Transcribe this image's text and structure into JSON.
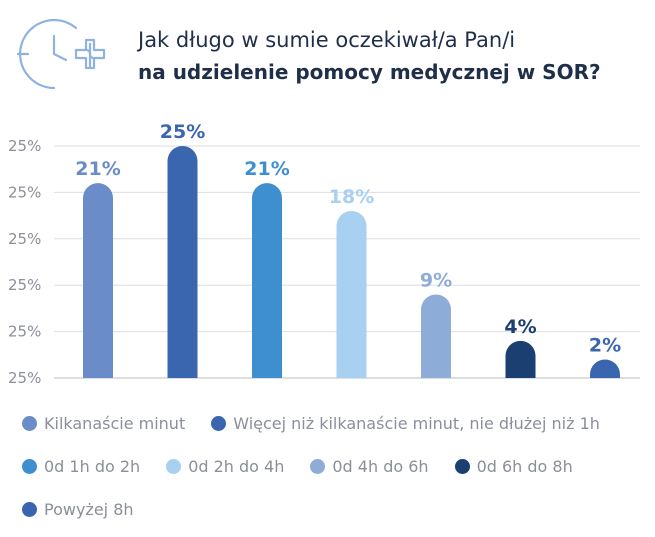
{
  "title": {
    "line1": "Jak długo w sumie oczekiwał/a Pan/i",
    "line2": "na udzielenie pomocy medycznej w SOR?"
  },
  "icon": "clock-medical-icon",
  "chart_data": {
    "type": "bar",
    "title": "Jak długo w sumie oczekiwał/a Pan/i na udzielenie pomocy medycznej w SOR?",
    "categories": [
      "Kilkanaście minut",
      "Więcej niż kilkanaście minut, nie dłużej niż 1h",
      "0d 1h do 2h",
      "0d 2h do 4h",
      "0d 4h do 6h",
      "0d 6h do 8h",
      "Powyżej 8h"
    ],
    "values": [
      21,
      25,
      21,
      18,
      9,
      4,
      2
    ],
    "data_labels": [
      "21%",
      "25%",
      "21%",
      "18%",
      "9%",
      "4%",
      "2%"
    ],
    "colors": [
      "#6a8cc9",
      "#3a66b0",
      "#3e8fd0",
      "#a8d0f0",
      "#8eacd8",
      "#1a3f70",
      "#3a66b0"
    ],
    "label_colors": [
      "#6a8cc9",
      "#3a66b0",
      "#3e8fd0",
      "#a8d0f0",
      "#8eacd8",
      "#1a3f70",
      "#3a66b0"
    ],
    "y_tick_labels": [
      "25%",
      "25%",
      "25%",
      "25%",
      "25%",
      "25%"
    ],
    "ylim": [
      0,
      25
    ],
    "grid": true,
    "xlabel": "",
    "ylabel": "",
    "legend_position": "bottom"
  }
}
